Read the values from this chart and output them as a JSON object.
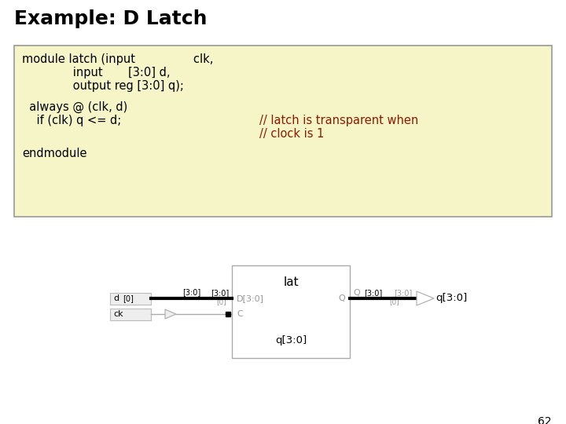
{
  "title": "Example: D Latch",
  "title_fontsize": 18,
  "title_fontweight": "bold",
  "title_font": "DejaVu Sans",
  "bg_color": "#ffffff",
  "code_box_color": "#f5f5c8",
  "code_box_border": "#999999",
  "code_line1": "module latch (input                clk,",
  "code_line2": "              input       [3:0] d,",
  "code_line3": "              output reg [3:0] q);",
  "code_line4": "  always @ (clk, d)",
  "code_line5": "    if (clk) q <= d;",
  "comment_line1": "// latch is transparent when",
  "comment_line2": "// clock is 1",
  "code_endmodule": "endmodule",
  "code_font": "Courier New",
  "code_fontsize": 10.5,
  "code_color": "#000000",
  "comment_color": "#8b1a00",
  "page_number": "62",
  "diagram_latch_label": "lat",
  "diagram_D_label": "D[3:0]",
  "diagram_C_label": "C",
  "diagram_Q_label": "Q",
  "diagram_q30_label": "q[3:0]",
  "diagram_d_label": "d",
  "diagram_d_bits": "[0]",
  "diagram_ck_label": "ck",
  "diagram_bus30": "[3:0]",
  "diagram_bus30b": "[3:0]",
  "diagram_gray": "#999999",
  "diagram_darkgray": "#555555"
}
